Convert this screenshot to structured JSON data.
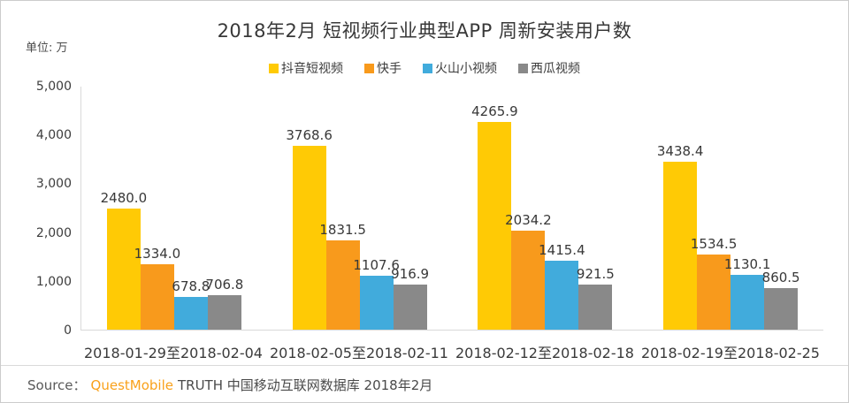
{
  "title": "2018年2月 短视频行业典型APP 周新安装用户数",
  "unit_label": "单位: 万",
  "legend": [
    {
      "label": "抖音短视频",
      "color": "#FFCA05"
    },
    {
      "label": "快手",
      "color": "#F89A1C"
    },
    {
      "label": "火山小视频",
      "color": "#41ABDC"
    },
    {
      "label": "西瓜视频",
      "color": "#898989"
    }
  ],
  "chart_data": {
    "type": "bar",
    "title": "2018年2月 短视频行业典型APP 周新安装用户数",
    "ylabel": "单位: 万",
    "categories": [
      "2018-01-29至2018-02-04",
      "2018-02-05至2018-02-11",
      "2018-02-12至2018-02-18",
      "2018-02-19至2018-02-25"
    ],
    "series": [
      {
        "name": "抖音短视频",
        "color": "#FFCA05",
        "values": [
          2480.0,
          3768.6,
          4265.9,
          3438.4
        ]
      },
      {
        "name": "快手",
        "color": "#F89A1C",
        "values": [
          1334.0,
          1831.5,
          2034.2,
          1534.5
        ]
      },
      {
        "name": "火山小视频",
        "color": "#41ABDC",
        "values": [
          678.8,
          1107.6,
          1415.4,
          1130.1
        ]
      },
      {
        "name": "西瓜视频",
        "color": "#898989",
        "values": [
          706.8,
          916.9,
          921.5,
          860.5
        ]
      }
    ],
    "ylim": [
      0,
      5000
    ],
    "ytick_values": [
      5000,
      4000,
      3000,
      2000,
      1000,
      0
    ],
    "ytick_labels": [
      "5,000",
      "4,000",
      "3,000",
      "2,000",
      "1,000",
      "0"
    ],
    "grid": false,
    "legend_position": "top",
    "value_labels": true,
    "value_label_decimals": 1
  },
  "source": {
    "prefix": "Source：",
    "brand": "QuestMobile",
    "suffix": "TRUTH 中国移动互联网数据库 2018年2月"
  }
}
